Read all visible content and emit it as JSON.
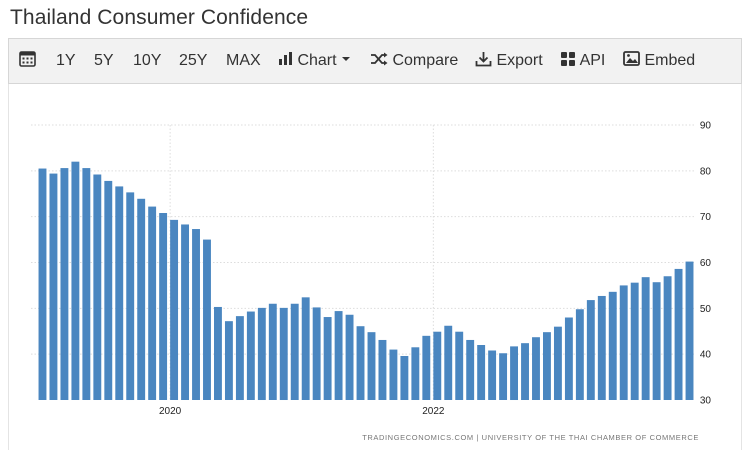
{
  "page": {
    "title": "Thailand Consumer Confidence"
  },
  "toolbar": {
    "calendar_icon": "calendar-icon",
    "ranges": [
      "1Y",
      "5Y",
      "10Y",
      "25Y",
      "MAX"
    ],
    "chart_label": "Chart",
    "compare_label": "Compare",
    "export_label": "Export",
    "api_label": "API",
    "embed_label": "Embed"
  },
  "colors": {
    "bar": "#4a86c0",
    "grid": "#dddddd",
    "toolbar_bg": "#f2f2f2"
  },
  "chart_data": {
    "type": "bar",
    "title": "Thailand Consumer Confidence",
    "xlabel": "",
    "ylabel": "",
    "ylim": [
      30,
      90
    ],
    "y_ticks": [
      30,
      40,
      50,
      60,
      70,
      80,
      90
    ],
    "y_axis_position": "right",
    "grid": true,
    "x_tick_labels": [
      {
        "label": "2020",
        "month": "2020-01"
      },
      {
        "label": "2022",
        "month": "2022-01"
      }
    ],
    "categories": [
      "2019-01",
      "2019-02",
      "2019-03",
      "2019-04",
      "2019-05",
      "2019-06",
      "2019-07",
      "2019-08",
      "2019-09",
      "2019-10",
      "2019-11",
      "2019-12",
      "2020-01",
      "2020-02",
      "2020-03",
      "2020-04",
      "2020-05",
      "2020-06",
      "2020-07",
      "2020-08",
      "2020-09",
      "2020-10",
      "2020-11",
      "2020-12",
      "2021-01",
      "2021-02",
      "2021-03",
      "2021-04",
      "2021-05",
      "2021-06",
      "2021-07",
      "2021-08",
      "2021-09",
      "2021-10",
      "2021-11",
      "2021-12",
      "2022-01",
      "2022-02",
      "2022-03",
      "2022-04",
      "2022-05",
      "2022-06",
      "2022-07",
      "2022-08",
      "2022-09",
      "2022-10",
      "2022-11",
      "2022-12",
      "2023-01",
      "2023-02",
      "2023-03",
      "2023-04",
      "2023-05",
      "2023-06",
      "2023-07",
      "2023-08",
      "2023-09",
      "2023-10",
      "2023-11",
      "2023-12"
    ],
    "values": [
      80.5,
      79.4,
      80.6,
      82.0,
      80.6,
      79.2,
      77.8,
      76.6,
      75.3,
      73.9,
      72.2,
      70.8,
      69.3,
      68.3,
      67.3,
      65.0,
      50.3,
      47.2,
      48.3,
      49.3,
      50.1,
      51.0,
      50.1,
      51.0,
      52.4,
      50.2,
      48.1,
      49.4,
      48.6,
      46.1,
      44.8,
      43.1,
      41.0,
      39.6,
      41.5,
      44.0,
      44.9,
      46.2,
      44.9,
      43.1,
      42.0,
      40.8,
      40.2,
      41.7,
      42.4,
      43.7,
      44.8,
      46.0,
      48.0,
      49.8,
      51.8,
      52.7,
      53.6,
      55.0,
      55.6,
      56.8,
      55.7,
      57.0,
      58.6,
      60.2
    ],
    "credit": "TRADINGECONOMICS.COM  |  UNIVERSITY OF THE THAI CHAMBER OF COMMERCE"
  }
}
